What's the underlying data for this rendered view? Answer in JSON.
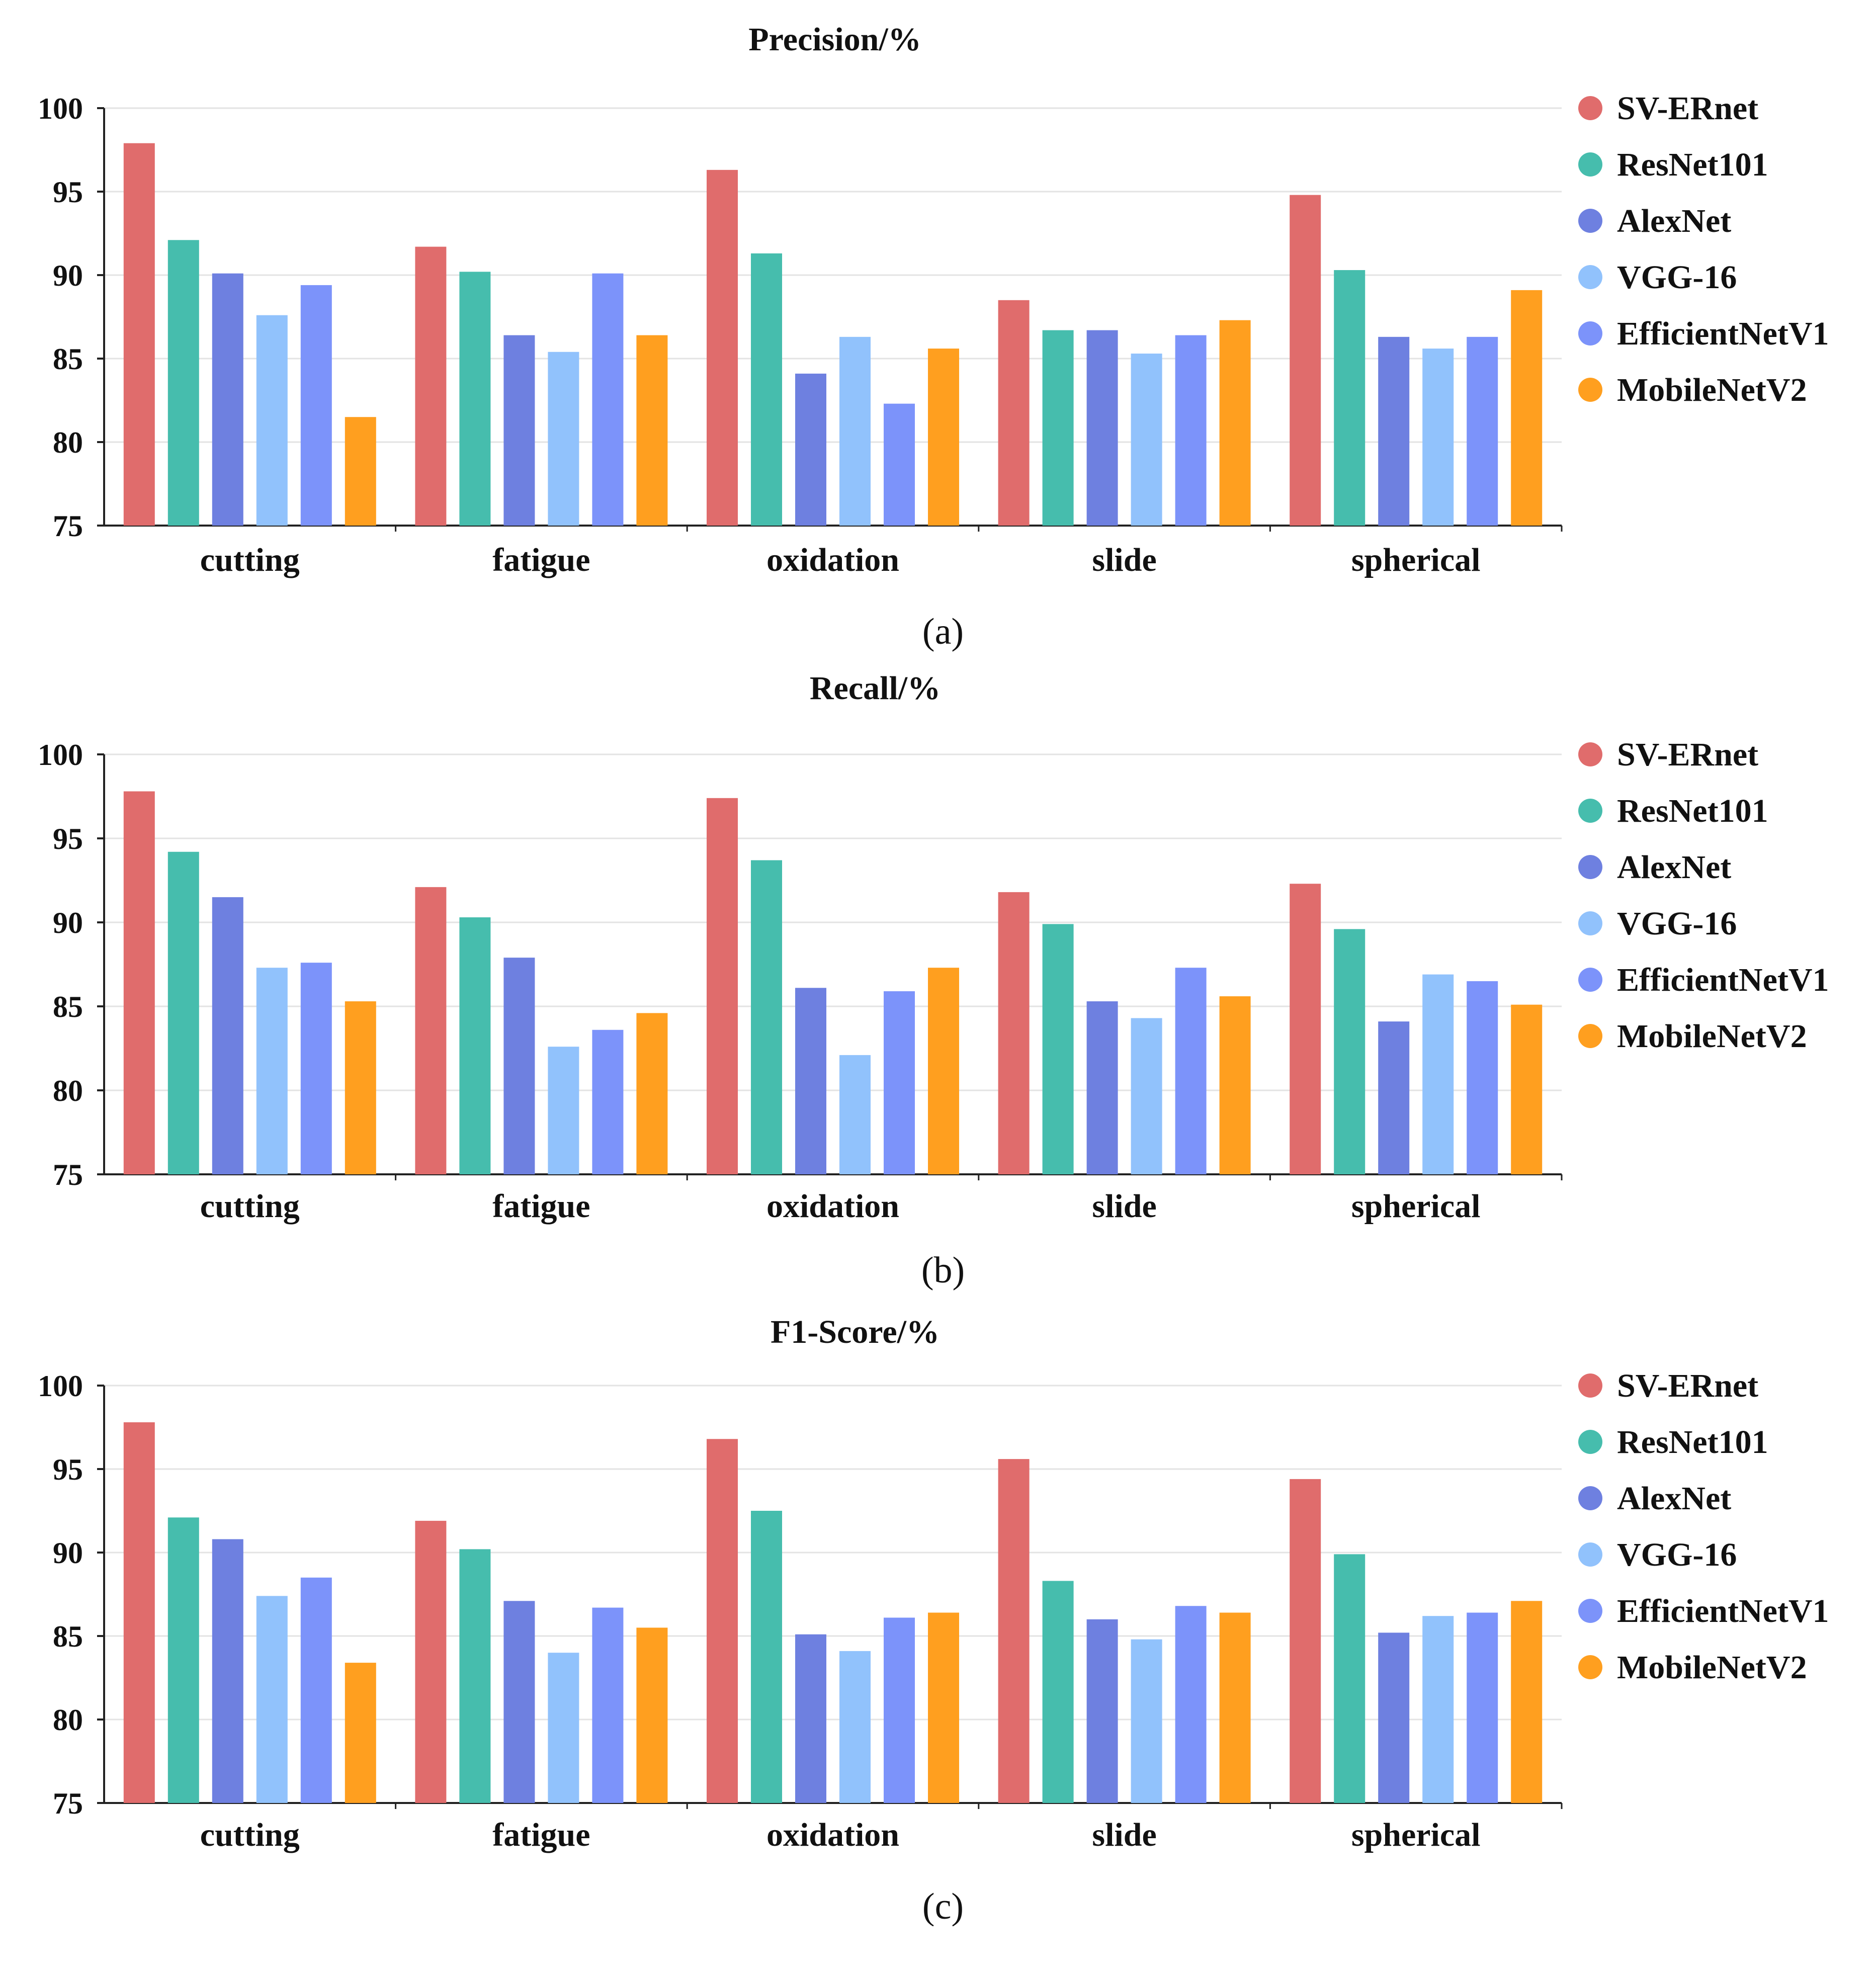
{
  "chart_data": [
    {
      "type": "bar",
      "title": "Precision/%",
      "caption": "(a)",
      "categories": [
        "cutting",
        "fatigue",
        "oxidation",
        "slide",
        "spherical"
      ],
      "yticks": [
        "75",
        "80",
        "85",
        "90",
        "95",
        "100"
      ],
      "ylim": [
        75,
        100
      ],
      "series": [
        {
          "name": "SV-ERnet",
          "color": "#E06C6C",
          "values": [
            97.9,
            91.7,
            96.3,
            88.5,
            94.8
          ]
        },
        {
          "name": "ResNet101",
          "color": "#46BDAD",
          "values": [
            92.1,
            90.2,
            91.3,
            86.7,
            90.3
          ]
        },
        {
          "name": "AlexNet",
          "color": "#6E80E0",
          "values": [
            90.1,
            86.4,
            84.1,
            86.7,
            86.3
          ]
        },
        {
          "name": "VGG-16",
          "color": "#91C2FC",
          "values": [
            87.6,
            85.4,
            86.3,
            85.3,
            85.6
          ]
        },
        {
          "name": "EfficientNetV1",
          "color": "#7C93FA",
          "values": [
            89.4,
            90.1,
            82.3,
            86.4,
            86.3
          ]
        },
        {
          "name": "MobileNetV2",
          "color": "#FF9F1F",
          "values": [
            81.5,
            86.4,
            85.6,
            87.3,
            89.1
          ]
        }
      ]
    },
    {
      "type": "bar",
      "title": "Recall/%",
      "caption": "(b)",
      "categories": [
        "cutting",
        "fatigue",
        "oxidation",
        "slide",
        "spherical"
      ],
      "yticks": [
        "75",
        "80",
        "85",
        "90",
        "95",
        "100"
      ],
      "ylim": [
        75,
        100
      ],
      "series": [
        {
          "name": "SV-ERnet",
          "color": "#E06C6C",
          "values": [
            97.8,
            92.1,
            97.4,
            91.8,
            92.3
          ]
        },
        {
          "name": "ResNet101",
          "color": "#46BDAD",
          "values": [
            94.2,
            90.3,
            93.7,
            89.9,
            89.6
          ]
        },
        {
          "name": "AlexNet",
          "color": "#6E80E0",
          "values": [
            91.5,
            87.9,
            86.1,
            85.3,
            84.1
          ]
        },
        {
          "name": "VGG-16",
          "color": "#91C2FC",
          "values": [
            87.3,
            82.6,
            82.1,
            84.3,
            86.9
          ]
        },
        {
          "name": "EfficientNetV1",
          "color": "#7C93FA",
          "values": [
            87.6,
            83.6,
            85.9,
            87.3,
            86.5
          ]
        },
        {
          "name": "MobileNetV2",
          "color": "#FF9F1F",
          "values": [
            85.3,
            84.6,
            87.3,
            85.6,
            85.1
          ]
        }
      ]
    },
    {
      "type": "bar",
      "title": "F1-Score/%",
      "caption": "(c)",
      "categories": [
        "cutting",
        "fatigue",
        "oxidation",
        "slide",
        "spherical"
      ],
      "yticks": [
        "75",
        "80",
        "85",
        "90",
        "95",
        "100"
      ],
      "ylim": [
        75,
        100
      ],
      "series": [
        {
          "name": "SV-ERnet",
          "color": "#E06C6C",
          "values": [
            97.8,
            91.9,
            96.8,
            95.6,
            94.4
          ]
        },
        {
          "name": "ResNet101",
          "color": "#46BDAD",
          "values": [
            92.1,
            90.2,
            92.5,
            88.3,
            89.9
          ]
        },
        {
          "name": "AlexNet",
          "color": "#6E80E0",
          "values": [
            90.8,
            87.1,
            85.1,
            86.0,
            85.2
          ]
        },
        {
          "name": "VGG-16",
          "color": "#91C2FC",
          "values": [
            87.4,
            84.0,
            84.1,
            84.8,
            86.2
          ]
        },
        {
          "name": "EfficientNetV1",
          "color": "#7C93FA",
          "values": [
            88.5,
            86.7,
            86.1,
            86.8,
            86.4
          ]
        },
        {
          "name": "MobileNetV2",
          "color": "#FF9F1F",
          "values": [
            83.4,
            85.5,
            86.4,
            86.4,
            87.1
          ]
        }
      ]
    }
  ]
}
